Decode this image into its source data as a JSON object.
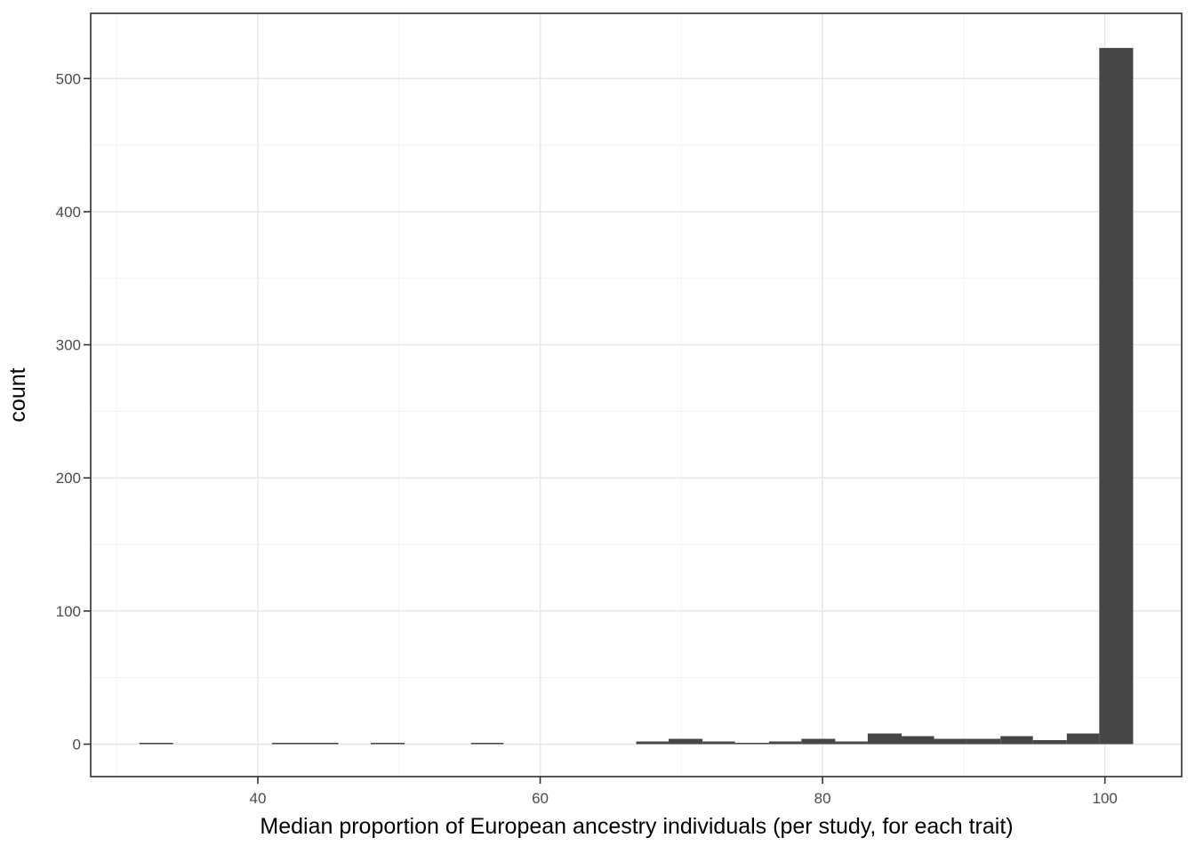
{
  "chart_data": {
    "type": "bar",
    "subtype": "histogram",
    "title": "",
    "xlabel": "Median proportion of European ancestry individuals (per study, for each trait)",
    "ylabel": "count",
    "x_ticks": [
      40,
      60,
      80,
      100
    ],
    "x_minor_ticks": [
      30,
      50,
      70,
      90
    ],
    "y_ticks": [
      0,
      100,
      200,
      300,
      400,
      500
    ],
    "y_minor_ticks": [
      50,
      150,
      250,
      350,
      450
    ],
    "xlim": [
      28.2,
      103.5
    ],
    "ylim": [
      -24,
      549
    ],
    "grid": true,
    "legend": "none",
    "bins": [
      {
        "x0": 31.6,
        "x1": 34.0,
        "count": 1
      },
      {
        "x0": 41.0,
        "x1": 43.4,
        "count": 1
      },
      {
        "x0": 43.4,
        "x1": 45.7,
        "count": 1
      },
      {
        "x0": 48.0,
        "x1": 50.4,
        "count": 1
      },
      {
        "x0": 55.1,
        "x1": 57.4,
        "count": 1
      },
      {
        "x0": 66.8,
        "x1": 69.1,
        "count": 2
      },
      {
        "x0": 69.1,
        "x1": 71.5,
        "count": 4
      },
      {
        "x0": 71.5,
        "x1": 73.8,
        "count": 2
      },
      {
        "x0": 73.8,
        "x1": 76.2,
        "count": 1
      },
      {
        "x0": 76.2,
        "x1": 78.5,
        "count": 2
      },
      {
        "x0": 78.5,
        "x1": 80.9,
        "count": 4
      },
      {
        "x0": 80.9,
        "x1": 83.2,
        "count": 2
      },
      {
        "x0": 83.2,
        "x1": 85.6,
        "count": 8
      },
      {
        "x0": 85.6,
        "x1": 87.9,
        "count": 6
      },
      {
        "x0": 87.9,
        "x1": 90.2,
        "count": 4
      },
      {
        "x0": 90.2,
        "x1": 92.6,
        "count": 4
      },
      {
        "x0": 92.6,
        "x1": 94.9,
        "count": 6
      },
      {
        "x0": 94.9,
        "x1": 97.3,
        "count": 3
      },
      {
        "x0": 97.3,
        "x1": 99.6,
        "count": 8
      },
      {
        "x0": 99.6,
        "x1": 102.0,
        "count": 523
      }
    ],
    "colors": {
      "bar_fill": "#464646",
      "panel_border": "#2f2f2f",
      "grid_major": "#e6e6e6",
      "grid_minor": "#f2f2f2",
      "tick_mark": "#333333",
      "tick_label": "#4d4d4d",
      "axis_title": "#000000",
      "background": "#ffffff"
    }
  }
}
